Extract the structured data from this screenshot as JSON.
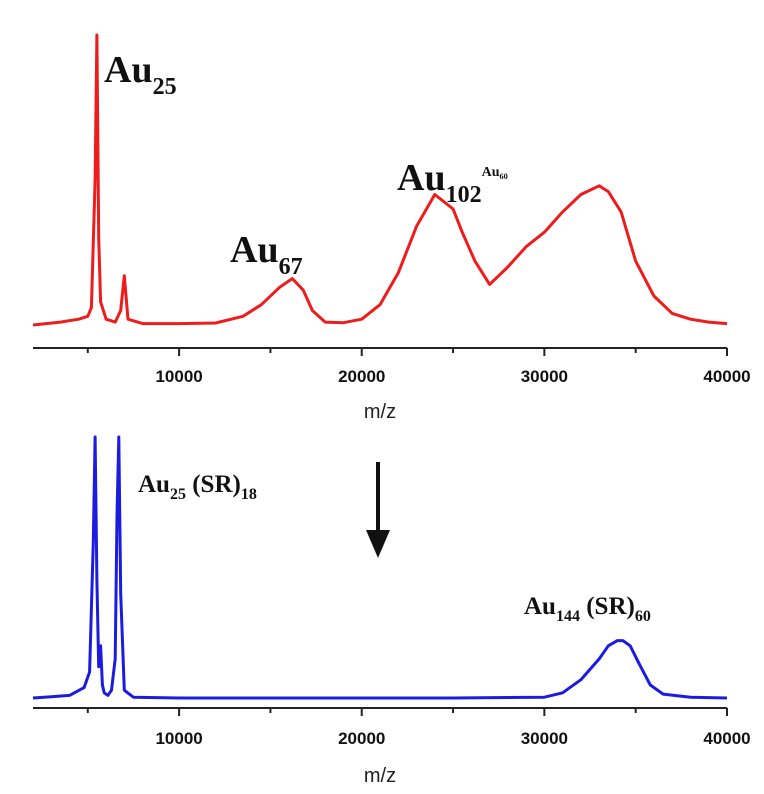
{
  "chart_data": [
    {
      "type": "line",
      "panel": "top",
      "color": "#ee1c1c",
      "xlabel": "m/z",
      "xlim": [
        2000,
        40000
      ],
      "ylim": [
        0,
        1
      ],
      "grid": false,
      "x_ticks": [
        "10000",
        "20000",
        "30000",
        "40000"
      ],
      "annotations": [
        {
          "base": "Au",
          "sub": "25",
          "sup": ""
        },
        {
          "base": "Au",
          "sub": "67",
          "sup": ""
        },
        {
          "base": "Au",
          "sub": "102",
          "sup": "Au₆₀"
        }
      ],
      "series": [
        {
          "x": [
            2000,
            3500,
            4500,
            5000,
            5200,
            5400,
            5500,
            5600,
            5700,
            6000,
            6500,
            6800,
            7000,
            7200,
            8000,
            10000,
            12000,
            13500,
            14500,
            15500,
            16200,
            16800,
            17300,
            18000,
            19000,
            20000,
            21000,
            22000,
            23000,
            24000,
            25000,
            25500,
            26200,
            27000,
            28000,
            29000,
            30000,
            31000,
            32000,
            33000,
            33500,
            34200,
            35000,
            36000,
            37000,
            38000,
            39000,
            40000
          ],
          "y": [
            0.0,
            0.01,
            0.02,
            0.03,
            0.06,
            0.5,
            1.0,
            0.3,
            0.08,
            0.02,
            0.01,
            0.05,
            0.17,
            0.02,
            0.005,
            0.005,
            0.007,
            0.03,
            0.07,
            0.13,
            0.16,
            0.12,
            0.05,
            0.01,
            0.008,
            0.02,
            0.07,
            0.18,
            0.34,
            0.45,
            0.4,
            0.32,
            0.22,
            0.14,
            0.2,
            0.27,
            0.32,
            0.39,
            0.45,
            0.48,
            0.46,
            0.39,
            0.22,
            0.1,
            0.04,
            0.02,
            0.01,
            0.005
          ]
        }
      ]
    },
    {
      "type": "line",
      "panel": "bottom",
      "color": "#1c1ce0",
      "xlabel": "m/z",
      "xlim": [
        2000,
        40000
      ],
      "ylim": [
        0,
        1
      ],
      "grid": false,
      "x_ticks": [
        "10000",
        "20000",
        "30000",
        "40000"
      ],
      "annotations": [
        {
          "base": "Au",
          "sub": "25",
          "rest": " (SR)",
          "sub2": "18"
        },
        {
          "base": "Au",
          "sub": "144",
          "rest": " (SR)",
          "sub2": "60"
        }
      ],
      "series": [
        {
          "x": [
            2000,
            3000,
            4000,
            4800,
            5100,
            5300,
            5400,
            5500,
            5600,
            5700,
            5800,
            5900,
            6100,
            6300,
            6500,
            6600,
            6700,
            6800,
            7000,
            7500,
            10000,
            15000,
            20000,
            25000,
            30000,
            31000,
            32000,
            33000,
            33500,
            34000,
            34300,
            34700,
            35200,
            35800,
            36500,
            38000,
            40000
          ],
          "y": [
            0.0,
            0.005,
            0.01,
            0.04,
            0.1,
            0.6,
            1.0,
            0.45,
            0.12,
            0.2,
            0.05,
            0.02,
            0.01,
            0.03,
            0.15,
            0.7,
            1.0,
            0.4,
            0.03,
            0.003,
            0.0,
            0.0,
            0.0,
            0.0,
            0.003,
            0.02,
            0.07,
            0.15,
            0.2,
            0.22,
            0.22,
            0.2,
            0.13,
            0.05,
            0.015,
            0.003,
            0.0
          ]
        }
      ]
    }
  ],
  "arrow": {
    "direction": "down",
    "color": "#111111"
  }
}
